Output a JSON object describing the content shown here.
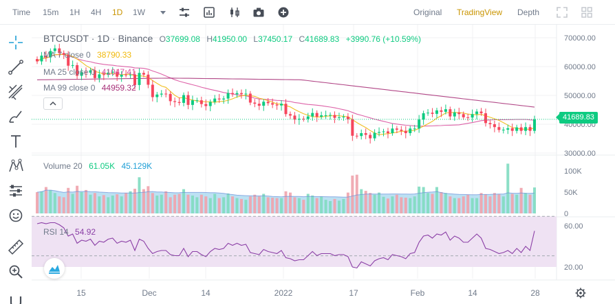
{
  "toolbar": {
    "intervals": [
      "Time",
      "15m",
      "1H",
      "4H",
      "1D",
      "1W"
    ],
    "active_interval": "1D",
    "views": [
      "Original",
      "TradingView",
      "Depth"
    ],
    "active_view": "TradingView"
  },
  "legend": {
    "symbol": "BTCUSDT · 1D · Binance",
    "open_label": "O",
    "open": "37699.08",
    "high_label": "H",
    "high": "41950.00",
    "low_label": "L",
    "low": "37450.17",
    "close_label": "C",
    "close": "41689.83",
    "change": "+3990.76 (+10.59%)"
  },
  "ma": [
    {
      "label": "MA 7 close 0",
      "value": "38790.33"
    },
    {
      "label": "MA 25 close 0",
      "value": "41047.41"
    },
    {
      "label": "MA 99 close 0",
      "value": "44959.32"
    }
  ],
  "volume": {
    "label": "Volume 20",
    "v1": "61.05K",
    "v2": "45.129K"
  },
  "rsi": {
    "label": "RSI 14",
    "value": "54.92"
  },
  "price_axis": [
    "70000.00",
    "60000.00",
    "50000.00",
    "40000.00",
    "30000.00"
  ],
  "current_price": "41689.83",
  "volume_axis": [
    "100K",
    "50K",
    "0"
  ],
  "rsi_axis": [
    "60.00",
    "20.00"
  ],
  "time_axis": [
    "15",
    "Dec",
    "14",
    "2022",
    "17",
    "Feb",
    "14",
    "28"
  ],
  "colors": {
    "up": "#0ecb81",
    "down": "#f6465d",
    "ma7": "#f0b90b",
    "ma25": "#d9519e",
    "ma99": "#a83279",
    "rsi": "#8b3fa6",
    "accent": "#c99400"
  },
  "chart_data": {
    "type": "candlestick",
    "price_ylim": [
      30000,
      70000
    ],
    "closes": [
      61800,
      63800,
      63200,
      65400,
      66300,
      64700,
      64100,
      60300,
      60500,
      56800,
      58100,
      57900,
      58700,
      56000,
      57300,
      57100,
      57900,
      58200,
      56500,
      57200,
      57100,
      57200,
      53600,
      57800,
      57200,
      53700,
      49400,
      50300,
      50600,
      50500,
      48000,
      47700,
      47400,
      50100,
      46700,
      48300,
      48300,
      47000,
      46300,
      47700,
      48900,
      48600,
      48900,
      50800,
      50400,
      50800,
      50400,
      50600,
      47500,
      47100,
      46400,
      47800,
      47300,
      46800,
      46500,
      47100,
      43500,
      43000,
      41600,
      41900,
      41800,
      42700,
      43900,
      42600,
      43100,
      43100,
      43200,
      42200,
      42400,
      42600,
      41700,
      36000,
      35900,
      36900,
      36300,
      35100,
      37000,
      37300,
      37500,
      36900,
      38500,
      38100,
      37700,
      36900,
      38500,
      38500,
      41600,
      43800,
      44000,
      43600,
      44800,
      44300,
      45200,
      42700,
      44100,
      43500,
      42400,
      42300,
      43500,
      44400,
      43800,
      40400,
      40000,
      39000,
      38000,
      38100,
      38600,
      37700,
      38900,
      37700,
      39000,
      37700,
      41700
    ],
    "volume_ylim": [
      0,
      110
    ],
    "volume_k": [
      50,
      52,
      62,
      55,
      48,
      40,
      38,
      60,
      46,
      65,
      50,
      55,
      44,
      48,
      40,
      43,
      38,
      42,
      45,
      40,
      48,
      52,
      58,
      85,
      57,
      64,
      48,
      42,
      44,
      52,
      38,
      44,
      46,
      57,
      44,
      42,
      38,
      44,
      40,
      36,
      46,
      36,
      38,
      47,
      40,
      36,
      34,
      32,
      40,
      44,
      40,
      46,
      38,
      37,
      36,
      36,
      52,
      49,
      38,
      36,
      32,
      46,
      42,
      36,
      40,
      32,
      29,
      34,
      30,
      34,
      49,
      89,
      91,
      57,
      53,
      48,
      44,
      49,
      39,
      35,
      40,
      44,
      38,
      37,
      36,
      40,
      63,
      62,
      48,
      46,
      62,
      50,
      48,
      40,
      36,
      36,
      40,
      44,
      36,
      36,
      48,
      45,
      40,
      48,
      45,
      40,
      117,
      46,
      44,
      60,
      48,
      44,
      61
    ],
    "rsi_ylim": [
      10,
      70
    ],
    "rsi": [
      62,
      63,
      62,
      63,
      63,
      61,
      58,
      50,
      52,
      43,
      46,
      45,
      47,
      41,
      45,
      44,
      47,
      48,
      43,
      45,
      44,
      46,
      36,
      47,
      45,
      38,
      33,
      35,
      36,
      36,
      32,
      31,
      31,
      38,
      30,
      35,
      35,
      32,
      30,
      35,
      38,
      37,
      38,
      43,
      41,
      43,
      41,
      42,
      34,
      33,
      32,
      37,
      35,
      34,
      33,
      36,
      29,
      28,
      26,
      27,
      27,
      31,
      35,
      31,
      33,
      33,
      33,
      31,
      32,
      32,
      30,
      20,
      19,
      25,
      23,
      21,
      26,
      28,
      29,
      27,
      32,
      31,
      30,
      28,
      33,
      34,
      44,
      50,
      51,
      48,
      52,
      51,
      54,
      46,
      50,
      48,
      44,
      44,
      48,
      52,
      48,
      38,
      37,
      35,
      33,
      34,
      36,
      33,
      38,
      34,
      40,
      36,
      55
    ]
  }
}
